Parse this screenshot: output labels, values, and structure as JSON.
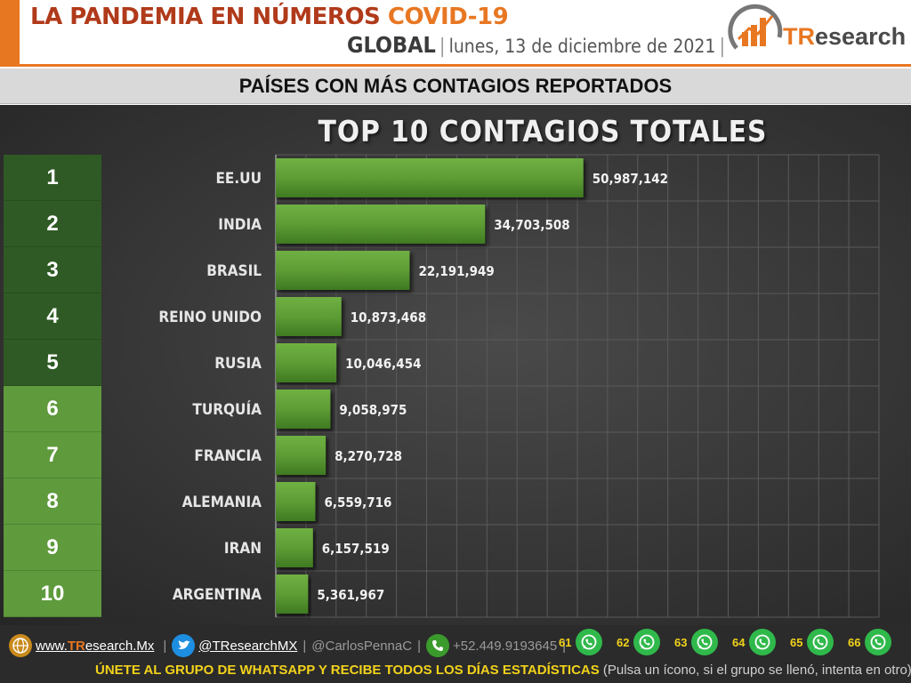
{
  "header": {
    "title_main": "LA PANDEMIA EN NÚMEROS",
    "title_covid": "COVID-19",
    "global_label": "GLOBAL",
    "date": "lunes, 13 de diciembre de 2021",
    "logo_tr": "TR",
    "logo_rest": "esearch"
  },
  "subtitle": "PAÍSES CON MÁS CONTAGIOS REPORTADOS",
  "colors": {
    "accent": "#e87722",
    "rank_dark": "#2f5a25",
    "rank_light": "#5f9a3c",
    "bar": "#5e9c35",
    "panel": "#3a3a3a"
  },
  "ranks": [
    "1",
    "2",
    "3",
    "4",
    "5",
    "6",
    "7",
    "8",
    "9",
    "10"
  ],
  "chart_data": {
    "type": "bar",
    "orientation": "horizontal",
    "title": "TOP 10 CONTAGIOS TOTALES",
    "categories": [
      "EE.UU",
      "INDIA",
      "BRASIL",
      "REINO UNIDO",
      "RUSIA",
      "TURQUÍA",
      "FRANCIA",
      "ALEMANIA",
      "IRAN",
      "ARGENTINA"
    ],
    "values": [
      50987142,
      34703508,
      22191949,
      10873468,
      10046454,
      9058975,
      8270728,
      6559716,
      6157519,
      5361967
    ],
    "value_labels": [
      "50,987,142",
      "34,703,508",
      "22,191,949",
      "10,873,468",
      "10,046,454",
      "9,058,975",
      "8,270,728",
      "6,559,716",
      "6,157,519",
      "5,361,967"
    ],
    "xlim": [
      0,
      100000000
    ],
    "grid": true,
    "legend": "none"
  },
  "footer": {
    "website_prefix": "www.",
    "website_tr": "TR",
    "website_rest": "esearch.Mx",
    "twitter": "@TResearchMX",
    "handle": "@CarlosPennaC",
    "phone": "+52.449.9193645",
    "whatsapp_groups": [
      "61",
      "62",
      "63",
      "64",
      "65",
      "66"
    ],
    "cta": "ÚNETE AL GRUPO DE WHATSAPP Y RECIBE TODOS LOS DÍAS ESTADÍSTICAS",
    "note": "(Pulsa un ícono, si el grupo se llenó, intenta en otro)"
  }
}
